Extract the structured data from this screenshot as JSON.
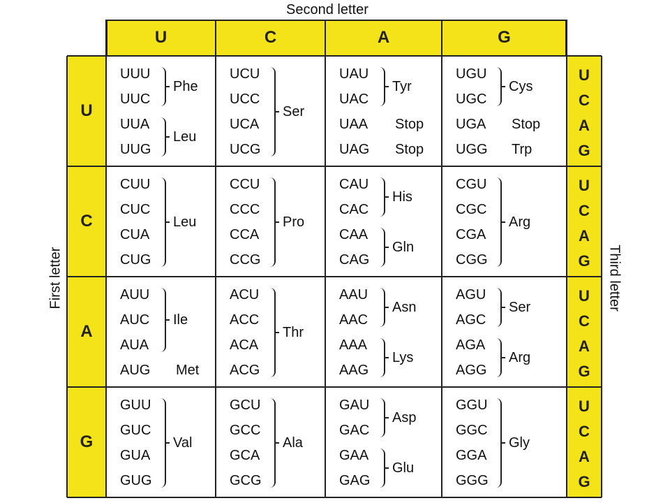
{
  "labels": {
    "second": "Second letter",
    "first": "First letter",
    "third": "Third letter"
  },
  "letters": [
    "U",
    "C",
    "A",
    "G"
  ],
  "colors": {
    "highlight": "#f5e31a",
    "lines": "#222222"
  },
  "blocks": [
    [
      {
        "codons": [
          "UUU",
          "UUC",
          "UUA",
          "UUG"
        ],
        "groups": [
          {
            "rows": [
              0,
              1
            ],
            "aa": "Phe"
          },
          {
            "rows": [
              2,
              3
            ],
            "aa": "Leu"
          }
        ]
      },
      {
        "codons": [
          "UCU",
          "UCC",
          "UCA",
          "UCG"
        ],
        "groups": [
          {
            "rows": [
              0,
              3
            ],
            "aa": "Ser"
          }
        ]
      },
      {
        "codons": [
          "UAU",
          "UAC",
          "UAA",
          "UAG"
        ],
        "groups": [
          {
            "rows": [
              0,
              1
            ],
            "aa": "Tyr"
          },
          {
            "rows": [
              2,
              2
            ],
            "aa": "Stop",
            "nobrace": true
          },
          {
            "rows": [
              3,
              3
            ],
            "aa": "Stop",
            "nobrace": true
          }
        ]
      },
      {
        "codons": [
          "UGU",
          "UGC",
          "UGA",
          "UGG"
        ],
        "groups": [
          {
            "rows": [
              0,
              1
            ],
            "aa": "Cys"
          },
          {
            "rows": [
              2,
              2
            ],
            "aa": "Stop",
            "nobrace": true
          },
          {
            "rows": [
              3,
              3
            ],
            "aa": "Trp",
            "nobrace": true
          }
        ]
      }
    ],
    [
      {
        "codons": [
          "CUU",
          "CUC",
          "CUA",
          "CUG"
        ],
        "groups": [
          {
            "rows": [
              0,
              3
            ],
            "aa": "Leu"
          }
        ]
      },
      {
        "codons": [
          "CCU",
          "CCC",
          "CCA",
          "CCG"
        ],
        "groups": [
          {
            "rows": [
              0,
              3
            ],
            "aa": "Pro"
          }
        ]
      },
      {
        "codons": [
          "CAU",
          "CAC",
          "CAA",
          "CAG"
        ],
        "groups": [
          {
            "rows": [
              0,
              1
            ],
            "aa": "His"
          },
          {
            "rows": [
              2,
              3
            ],
            "aa": "Gln"
          }
        ]
      },
      {
        "codons": [
          "CGU",
          "CGC",
          "CGA",
          "CGG"
        ],
        "groups": [
          {
            "rows": [
              0,
              3
            ],
            "aa": "Arg"
          }
        ]
      }
    ],
    [
      {
        "codons": [
          "AUU",
          "AUC",
          "AUA",
          "AUG"
        ],
        "groups": [
          {
            "rows": [
              0,
              2
            ],
            "aa": "Ile"
          },
          {
            "rows": [
              3,
              3
            ],
            "aa": "Met",
            "nobrace": true
          }
        ]
      },
      {
        "codons": [
          "ACU",
          "ACC",
          "ACA",
          "ACG"
        ],
        "groups": [
          {
            "rows": [
              0,
              3
            ],
            "aa": "Thr"
          }
        ]
      },
      {
        "codons": [
          "AAU",
          "AAC",
          "AAA",
          "AAG"
        ],
        "groups": [
          {
            "rows": [
              0,
              1
            ],
            "aa": "Asn"
          },
          {
            "rows": [
              2,
              3
            ],
            "aa": "Lys"
          }
        ]
      },
      {
        "codons": [
          "AGU",
          "AGC",
          "AGA",
          "AGG"
        ],
        "groups": [
          {
            "rows": [
              0,
              1
            ],
            "aa": "Ser"
          },
          {
            "rows": [
              2,
              3
            ],
            "aa": "Arg"
          }
        ]
      }
    ],
    [
      {
        "codons": [
          "GUU",
          "GUC",
          "GUA",
          "GUG"
        ],
        "groups": [
          {
            "rows": [
              0,
              3
            ],
            "aa": "Val"
          }
        ]
      },
      {
        "codons": [
          "GCU",
          "GCC",
          "GCA",
          "GCG"
        ],
        "groups": [
          {
            "rows": [
              0,
              3
            ],
            "aa": "Ala"
          }
        ]
      },
      {
        "codons": [
          "GAU",
          "GAC",
          "GAA",
          "GAG"
        ],
        "groups": [
          {
            "rows": [
              0,
              1
            ],
            "aa": "Asp"
          },
          {
            "rows": [
              2,
              3
            ],
            "aa": "Glu"
          }
        ]
      },
      {
        "codons": [
          "GGU",
          "GGC",
          "GGA",
          "GGG"
        ],
        "groups": [
          {
            "rows": [
              0,
              3
            ],
            "aa": "Gly"
          }
        ]
      }
    ]
  ]
}
